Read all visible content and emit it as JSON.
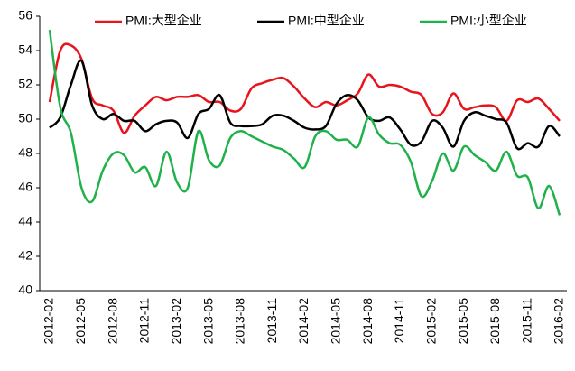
{
  "chart_data": {
    "type": "line",
    "categories": [
      "2012-02",
      null,
      null,
      "2012-05",
      null,
      null,
      "2012-08",
      null,
      null,
      "2012-11",
      null,
      null,
      "2013-02",
      null,
      null,
      "2013-05",
      null,
      null,
      "2013-08",
      null,
      null,
      "2013-11",
      null,
      null,
      "2014-02",
      null,
      null,
      "2014-05",
      null,
      null,
      "2014-08",
      null,
      null,
      "2014-11",
      null,
      null,
      "2015-02",
      null,
      null,
      "2015-05",
      null,
      null,
      "2015-08",
      null,
      null,
      "2015-11",
      null,
      null,
      "2016-02"
    ],
    "series": [
      {
        "name": "PMI:大型企业",
        "color": "#e8141c",
        "values": [
          51.0,
          54.0,
          54.3,
          53.5,
          51.2,
          50.8,
          50.5,
          49.2,
          50.2,
          50.8,
          51.3,
          51.1,
          51.3,
          51.3,
          51.4,
          51.0,
          51.0,
          50.5,
          50.6,
          51.8,
          52.1,
          52.3,
          52.4,
          51.9,
          51.2,
          50.7,
          51.0,
          50.8,
          51.1,
          51.5,
          52.6,
          51.9,
          52.0,
          51.9,
          51.6,
          51.4,
          50.3,
          50.4,
          51.5,
          50.6,
          50.7,
          50.8,
          50.7,
          49.9,
          51.1,
          51.0,
          51.2,
          50.6,
          49.9
        ]
      },
      {
        "name": "PMI:中型企业",
        "color": "#000000",
        "values": [
          49.5,
          50.1,
          52.0,
          53.4,
          50.8,
          50.0,
          50.3,
          49.9,
          49.9,
          49.3,
          49.7,
          49.9,
          49.8,
          48.9,
          50.3,
          50.6,
          51.4,
          49.8,
          49.6,
          49.6,
          49.7,
          50.2,
          50.2,
          49.9,
          49.5,
          49.4,
          49.6,
          50.9,
          51.4,
          51.1,
          50.1,
          49.9,
          50.1,
          49.4,
          48.5,
          48.7,
          49.9,
          49.5,
          48.4,
          49.9,
          50.4,
          50.2,
          50.0,
          49.8,
          48.3,
          48.6,
          48.4,
          49.6,
          49.0
        ]
      },
      {
        "name": "PMI:小型企业",
        "color": "#1fb24a",
        "values": [
          55.2,
          50.7,
          49.2,
          46.0,
          45.2,
          47.0,
          48.0,
          47.9,
          46.9,
          47.2,
          46.1,
          48.1,
          46.3,
          46.0,
          49.3,
          47.6,
          47.3,
          48.9,
          49.3,
          49.0,
          48.7,
          48.4,
          48.2,
          47.7,
          47.2,
          49.0,
          49.3,
          48.8,
          48.8,
          48.4,
          50.1,
          49.1,
          48.6,
          48.5,
          47.5,
          45.5,
          46.4,
          48.0,
          47.0,
          48.4,
          47.9,
          47.5,
          47.0,
          48.1,
          46.7,
          46.6,
          44.8,
          46.1,
          44.4
        ]
      }
    ],
    "ylim": [
      40,
      56
    ],
    "yticks": [
      40,
      42,
      44,
      46,
      48,
      50,
      52,
      54,
      56
    ],
    "legend": "top"
  }
}
